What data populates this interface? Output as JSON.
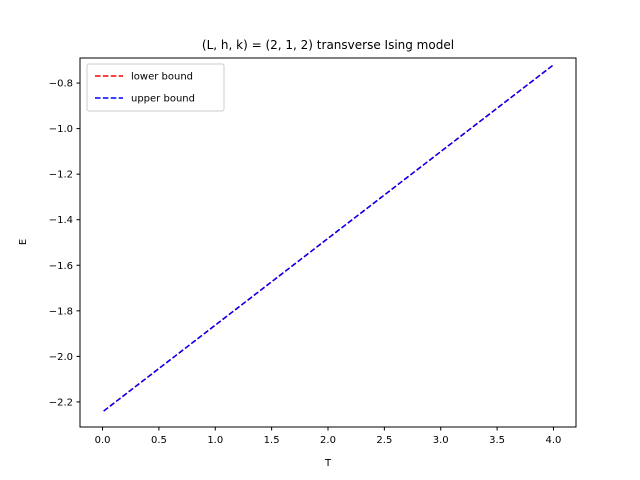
{
  "chart_data": {
    "type": "line",
    "title": "(L, h, k) = (2, 1, 2) transverse Ising model",
    "xlabel": "T",
    "ylabel": "E",
    "xlim": [
      -0.2,
      4.2
    ],
    "ylim": [
      -2.31,
      -0.69
    ],
    "xticks": [
      0.0,
      0.5,
      1.0,
      1.5,
      2.0,
      2.5,
      3.0,
      3.5,
      4.0
    ],
    "xtick_labels": [
      "0.0",
      "0.5",
      "1.0",
      "1.5",
      "2.0",
      "2.5",
      "3.0",
      "3.5",
      "4.0"
    ],
    "yticks": [
      -2.2,
      -2.0,
      -1.8,
      -1.6,
      -1.4,
      -1.2,
      -1.0,
      -0.8
    ],
    "ytick_labels": [
      "−2.2",
      "−2.0",
      "−1.8",
      "−1.6",
      "−1.4",
      "−1.2",
      "−1.0",
      "−0.8"
    ],
    "grid": false,
    "legend_position": "upper-left",
    "series": [
      {
        "name": "lower bound",
        "color": "#ff0000",
        "linestyle": "dashed",
        "x": [
          0.01,
          4.0
        ],
        "y": [
          -2.24,
          -0.72
        ]
      },
      {
        "name": "upper bound",
        "color": "#0000ff",
        "linestyle": "dashed",
        "x": [
          0.01,
          4.0
        ],
        "y": [
          -2.24,
          -0.72
        ]
      }
    ]
  }
}
